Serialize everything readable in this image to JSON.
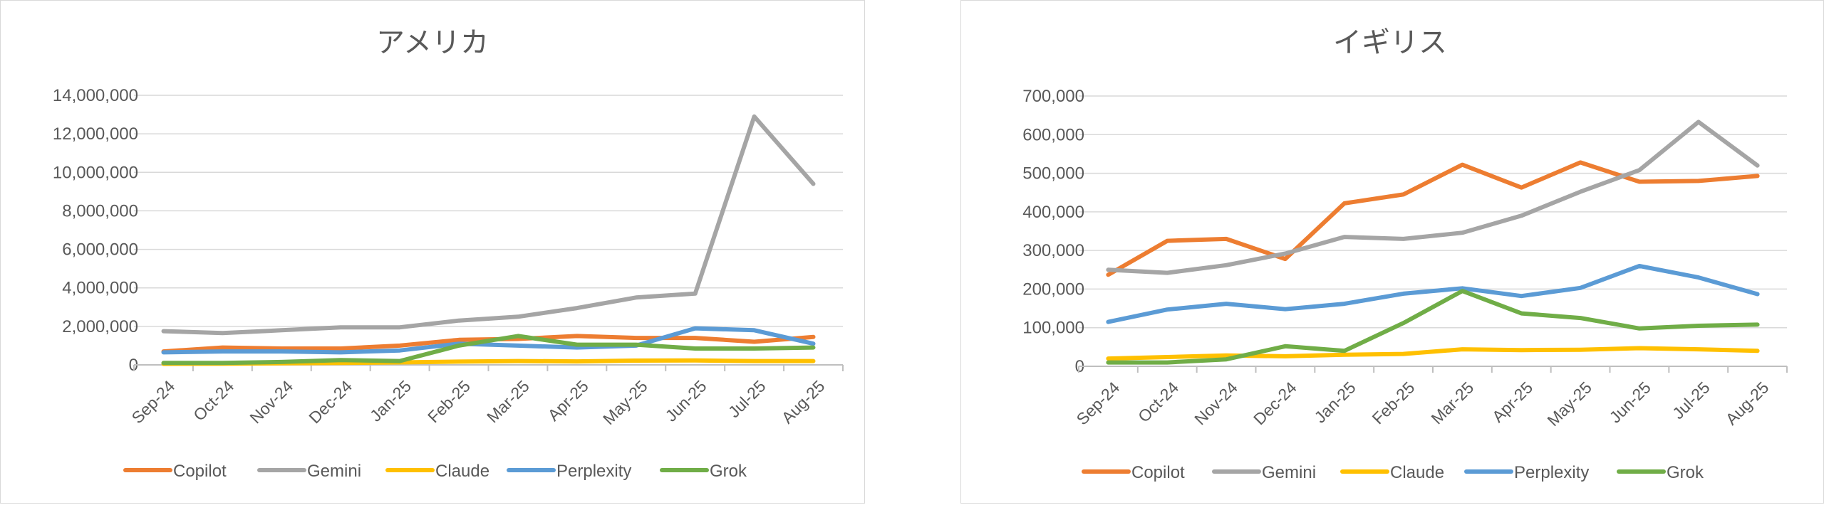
{
  "chart_data": [
    {
      "type": "line",
      "title": "アメリカ",
      "categories": [
        "Sep-24",
        "Oct-24",
        "Nov-24",
        "Dec-24",
        "Jan-25",
        "Feb-25",
        "Mar-25",
        "Apr-25",
        "May-25",
        "Jun-25",
        "Jul-25",
        "Aug-25"
      ],
      "ylim": [
        0,
        14000000
      ],
      "yticks": [
        0,
        2000000,
        4000000,
        6000000,
        8000000,
        10000000,
        12000000,
        14000000
      ],
      "ytick_labels": [
        "0",
        "2,000,000",
        "4,000,000",
        "6,000,000",
        "8,000,000",
        "10,000,000",
        "12,000,000",
        "14,000,000"
      ],
      "legend_position": "bottom",
      "series": [
        {
          "name": "Copilot",
          "color": "#ED7D31",
          "values": [
            700000,
            900000,
            850000,
            850000,
            1000000,
            1300000,
            1350000,
            1500000,
            1400000,
            1400000,
            1200000,
            1450000
          ]
        },
        {
          "name": "Gemini",
          "color": "#A5A5A5",
          "values": [
            1750000,
            1650000,
            1800000,
            1950000,
            1950000,
            2300000,
            2500000,
            2950000,
            3500000,
            3700000,
            12900000,
            9400000
          ]
        },
        {
          "name": "Claude",
          "color": "#FFC000",
          "values": [
            50000,
            60000,
            80000,
            100000,
            130000,
            170000,
            200000,
            180000,
            220000,
            230000,
            200000,
            200000
          ]
        },
        {
          "name": "Perplexity",
          "color": "#5B9BD5",
          "values": [
            650000,
            700000,
            700000,
            650000,
            750000,
            1100000,
            1000000,
            900000,
            1000000,
            1900000,
            1800000,
            1100000
          ]
        },
        {
          "name": "Grok",
          "color": "#70AD47",
          "values": [
            100000,
            100000,
            150000,
            250000,
            200000,
            1000000,
            1500000,
            1050000,
            1050000,
            850000,
            850000,
            900000
          ]
        }
      ]
    },
    {
      "type": "line",
      "title": "イギリス",
      "categories": [
        "Sep-24",
        "Oct-24",
        "Nov-24",
        "Dec-24",
        "Jan-25",
        "Feb-25",
        "Mar-25",
        "Apr-25",
        "May-25",
        "Jun-25",
        "Jul-25",
        "Aug-25"
      ],
      "ylim": [
        0,
        700000
      ],
      "yticks": [
        0,
        100000,
        200000,
        300000,
        400000,
        500000,
        600000,
        700000
      ],
      "ytick_labels": [
        "0",
        "100,000",
        "200,000",
        "300,000",
        "400,000",
        "500,000",
        "600,000",
        "700,000"
      ],
      "legend_position": "bottom",
      "series": [
        {
          "name": "Copilot",
          "color": "#ED7D31",
          "values": [
            237000,
            325000,
            330000,
            278000,
            422000,
            445000,
            522000,
            463000,
            528000,
            478000,
            480000,
            493000
          ]
        },
        {
          "name": "Gemini",
          "color": "#A5A5A5",
          "values": [
            250000,
            242000,
            262000,
            292000,
            335000,
            330000,
            346000,
            390000,
            452000,
            508000,
            633000,
            520000
          ]
        },
        {
          "name": "Claude",
          "color": "#FFC000",
          "values": [
            20000,
            24000,
            28000,
            26000,
            30000,
            32000,
            44000,
            42000,
            43000,
            47000,
            44000,
            40000
          ]
        },
        {
          "name": "Perplexity",
          "color": "#5B9BD5",
          "values": [
            115000,
            147000,
            162000,
            148000,
            162000,
            188000,
            202000,
            182000,
            203000,
            260000,
            230000,
            187000
          ]
        },
        {
          "name": "Grok",
          "color": "#70AD47",
          "values": [
            10000,
            10000,
            18000,
            52000,
            40000,
            112000,
            195000,
            137000,
            125000,
            98000,
            105000,
            108000
          ]
        }
      ]
    }
  ]
}
